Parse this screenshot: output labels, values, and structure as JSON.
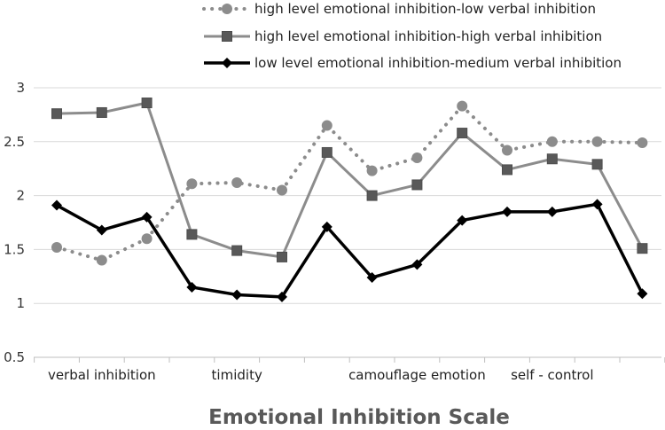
{
  "chart_data": {
    "type": "line",
    "title": "Emotional Inhibition Scale",
    "xlabel": "Emotional Inhibition Scale",
    "ylabel": "",
    "ylim": [
      0.5,
      3
    ],
    "yticks": [
      0.5,
      1,
      1.5,
      2,
      2.5,
      3
    ],
    "ytick_labels": [
      "0.5",
      "1",
      "1.5",
      "2",
      "2.5",
      "3"
    ],
    "categories": [
      "1",
      "2",
      "3",
      "4",
      "5",
      "6",
      "7",
      "8",
      "9",
      "10",
      "11",
      "12",
      "13",
      "14"
    ],
    "category_labels": [
      {
        "label": "verbal inhibition",
        "index": 1
      },
      {
        "label": "timidity",
        "index": 4
      },
      {
        "label": "camouflage emotion",
        "index": 8
      },
      {
        "label": "self - control",
        "index": 11
      }
    ],
    "legend_position": "top-right",
    "series": [
      {
        "name": "high level emotional inhibition-low verbal inhibition",
        "style": "dotted-circle",
        "color": "#8c8c8c",
        "values": [
          1.52,
          1.4,
          1.6,
          2.11,
          2.12,
          2.05,
          2.65,
          2.23,
          2.35,
          2.83,
          2.42,
          2.5,
          2.5,
          2.49
        ]
      },
      {
        "name": "high level emotional inhibition-high verbal inhibition",
        "style": "solid-square",
        "color": "#8c8c8c",
        "marker_color": "#595959",
        "values": [
          2.76,
          2.77,
          2.86,
          1.64,
          1.49,
          1.43,
          2.4,
          2.0,
          2.1,
          2.58,
          2.24,
          2.34,
          2.29,
          1.51
        ]
      },
      {
        "name": "low level emotional inhibition-medium verbal inhibition",
        "style": "solid-diamond",
        "color": "#000000",
        "values": [
          1.91,
          1.68,
          1.8,
          1.15,
          1.08,
          1.06,
          1.71,
          1.24,
          1.36,
          1.77,
          1.85,
          1.85,
          1.92,
          1.09
        ]
      }
    ]
  }
}
